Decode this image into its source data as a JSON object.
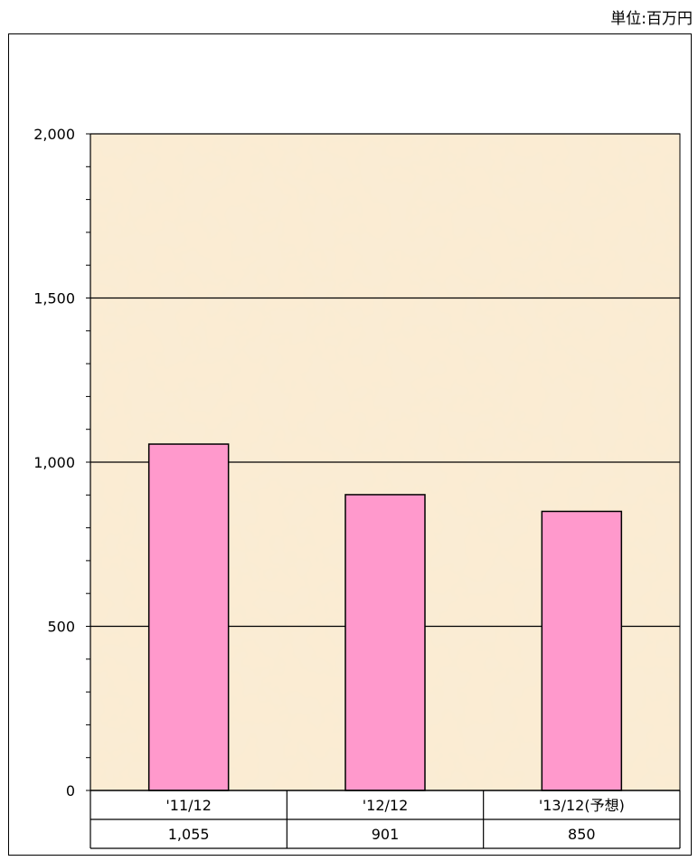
{
  "unit_label": "単位:百万円",
  "colors": {
    "bar_fill": "#ff99cc",
    "plot_bg": "#fbecd3",
    "grid": "#000000"
  },
  "chart_data": {
    "type": "bar",
    "categories": [
      "'11/12",
      "'12/12",
      "'13/12(予想)"
    ],
    "values": [
      1055,
      901,
      850
    ],
    "value_labels": [
      "1,055",
      "901",
      "850"
    ],
    "title": "",
    "xlabel": "",
    "ylabel": "",
    "ylim": [
      0,
      2000
    ],
    "yticks": [
      0,
      500,
      1000,
      1500,
      2000
    ],
    "ytick_labels": [
      "0",
      "500",
      "1,000",
      "1,500",
      "2,000"
    ],
    "grid": true,
    "data_table": true
  }
}
